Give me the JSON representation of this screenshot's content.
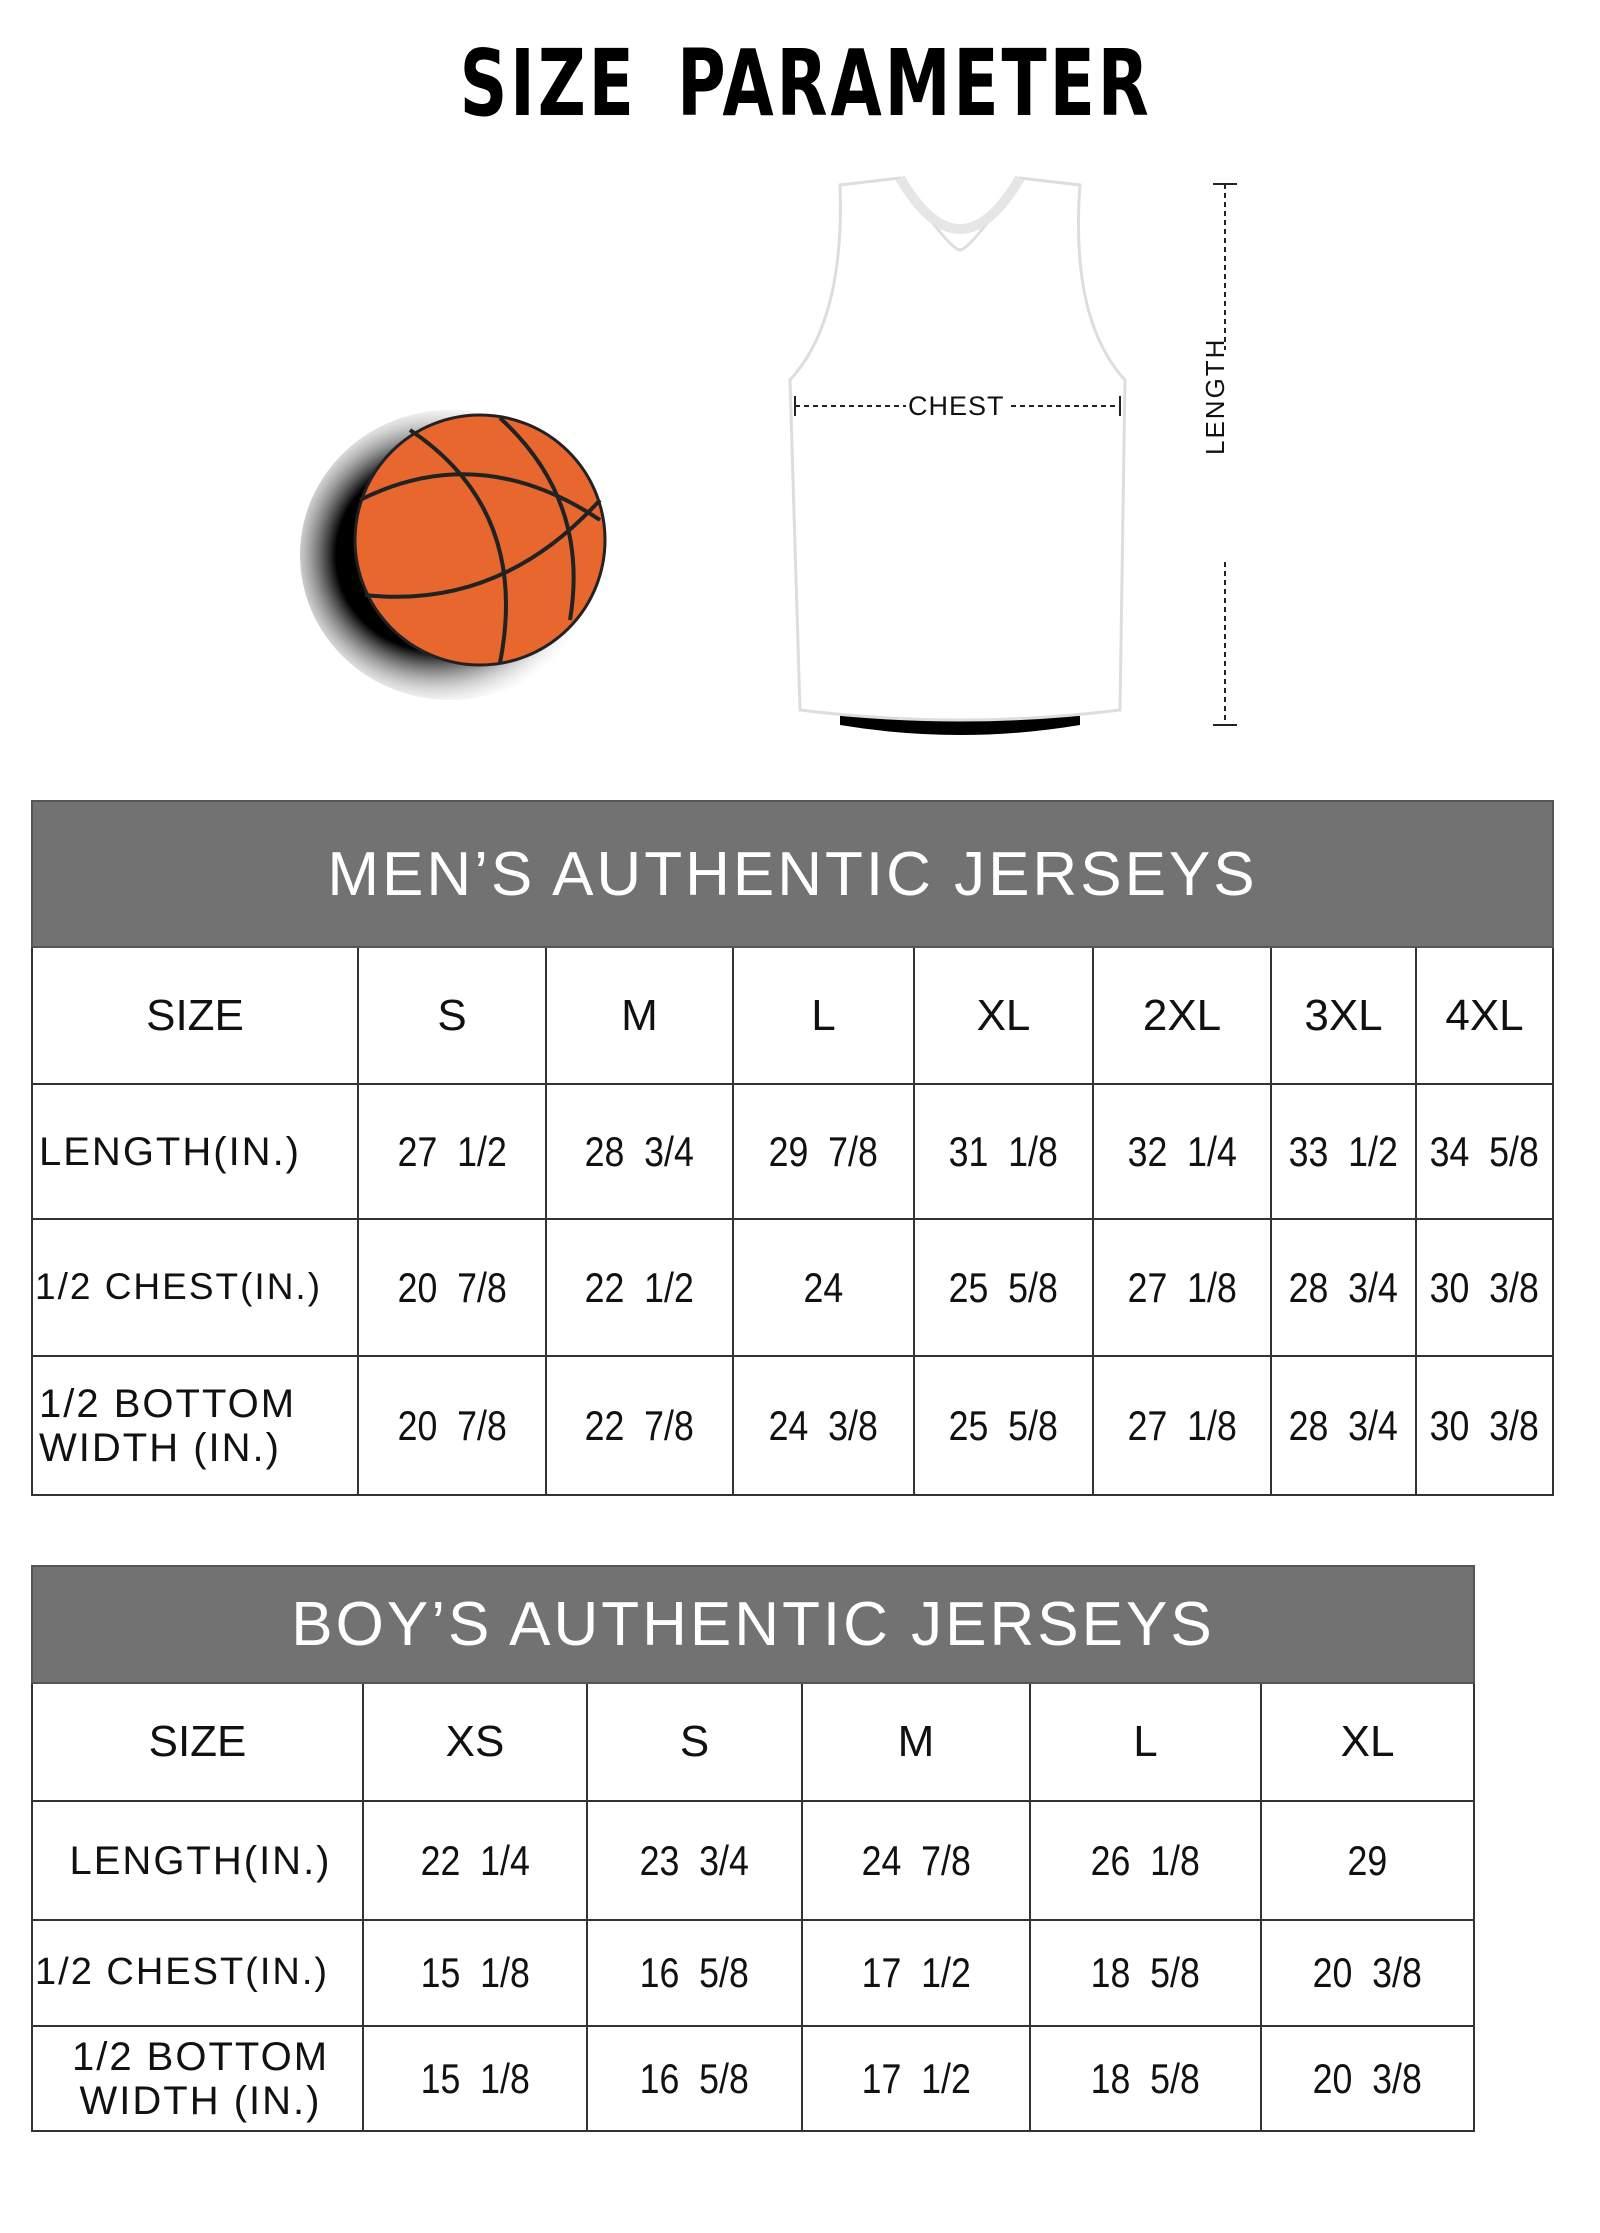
{
  "title": [
    "SIZE",
    "PARAMETER"
  ],
  "diagram": {
    "chest_label": "CHEST",
    "length_label": "LENGTH",
    "ball_color": "#e8672e",
    "header_color": "#727272"
  },
  "mens": {
    "heading": "MEN’S AUTHENTIC JERSEYS",
    "size_label": "SIZE",
    "sizes": [
      "S",
      "M",
      "L",
      "XL",
      "2XL",
      "3XL",
      "4XL"
    ],
    "rows": [
      {
        "label": "LENGTH(IN.)",
        "values": [
          "27  1/2",
          "28  3/4",
          "29  7/8",
          "31  1/8",
          "32  1/4",
          "33  1/2",
          "34  5/8"
        ]
      },
      {
        "label": "1/2 CHEST(IN.)",
        "values": [
          "20  7/8",
          "22  1/2",
          "24",
          "25  5/8",
          "27  1/8",
          "28  3/4",
          "30  3/8"
        ]
      },
      {
        "label": "1/2 BOTTOM WIDTH  (IN.)",
        "values": [
          "20  7/8",
          "22  7/8",
          "24  3/8",
          "25  5/8",
          "27  1/8",
          "28  3/4",
          "30  3/8"
        ]
      }
    ]
  },
  "boys": {
    "heading": "BOY’S AUTHENTIC JERSEYS",
    "size_label": "SIZE",
    "sizes": [
      "XS",
      "S",
      "M",
      "L",
      "XL"
    ],
    "rows": [
      {
        "label": "LENGTH(IN.)",
        "values": [
          "22  1/4",
          "23  3/4",
          "24  7/8",
          "26  1/8",
          "29"
        ]
      },
      {
        "label": "1/2 CHEST(IN.)",
        "values": [
          "15  1/8",
          "16  5/8",
          "17  1/2",
          "18  5/8",
          "20  3/8"
        ]
      },
      {
        "label": "1/2 BOTTOM WIDTH  (IN.)",
        "values": [
          "15  1/8",
          "16  5/8",
          "17  1/2",
          "18  5/8",
          "20  3/8"
        ]
      }
    ]
  }
}
